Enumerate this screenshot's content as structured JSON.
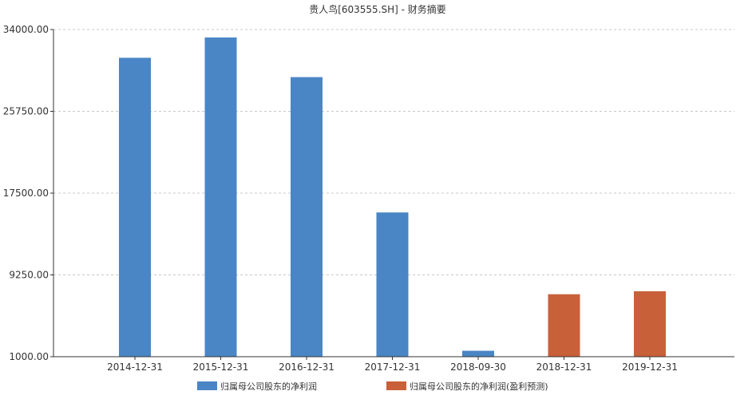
{
  "chart_data": {
    "type": "bar",
    "title": "贵人鸟[603555.SH] - 财务摘要",
    "categories": [
      "2014-12-31",
      "2015-12-31",
      "2016-12-31",
      "2017-12-31",
      "2018-09-30",
      "2018-12-31",
      "2019-12-31"
    ],
    "ylim": [
      1000,
      34000
    ],
    "yticks": [
      "34000.00",
      "25750.00",
      "17500.00",
      "9250.00",
      "1000.00"
    ],
    "ytick_values": [
      34000,
      25750,
      17500,
      9250,
      1000
    ],
    "grid": true,
    "legend_position": "bottom",
    "series": [
      {
        "name": "归属母公司股东的净利润",
        "color": "#4a86c5",
        "values": [
          31150,
          33200,
          29200,
          15550,
          1600,
          null,
          null
        ]
      },
      {
        "name": "归属母公司股东的净利润(盈利预测)",
        "color": "#c8603a",
        "values": [
          null,
          null,
          null,
          null,
          null,
          7300,
          7600
        ]
      }
    ]
  }
}
